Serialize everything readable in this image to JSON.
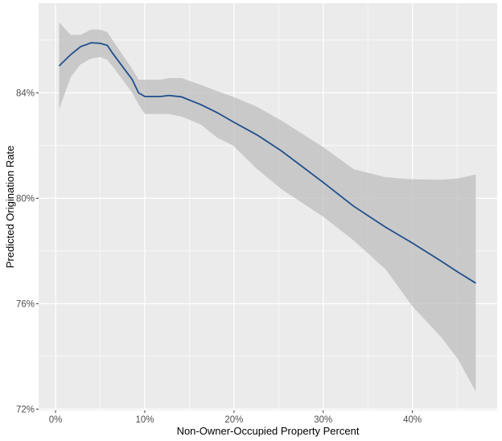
{
  "chart_data": {
    "type": "line",
    "title": "",
    "xlabel": "Non-Owner-Occupied Property Percent",
    "ylabel": "Predicted Origination Rate",
    "xlim": [
      -1.9,
      49.5
    ],
    "ylim": [
      71.95,
      87.4
    ],
    "x_ticks": [
      0,
      10,
      20,
      30,
      40
    ],
    "x_tick_labels": [
      "0%",
      "10%",
      "20%",
      "30%",
      "40%"
    ],
    "y_ticks": [
      72,
      76,
      80,
      84
    ],
    "y_tick_labels": [
      "72%",
      "76%",
      "80%",
      "84%"
    ],
    "grid": true,
    "line_color": "#1f4e8c",
    "ribbon_color": "#bdbdbd",
    "panel_color": "#ebebeb",
    "x": [
      0.4,
      1.7,
      2.8,
      4.0,
      5.0,
      5.8,
      6.4,
      8.6,
      9.3,
      10,
      11.8,
      12.7,
      14.1,
      16.3,
      18.1,
      19.9,
      22.6,
      25.3,
      30,
      33.4,
      37,
      40,
      43.3,
      45.1,
      47.1
    ],
    "series": [
      {
        "values": [
          85.02,
          85.45,
          85.75,
          85.9,
          85.88,
          85.8,
          85.5,
          84.5,
          84.0,
          83.86,
          83.86,
          83.9,
          83.85,
          83.55,
          83.25,
          82.9,
          82.4,
          81.8,
          80.6,
          79.7,
          78.9,
          78.3,
          77.6,
          77.2,
          76.78
        ],
        "upper": [
          86.67,
          86.2,
          86.2,
          86.4,
          86.4,
          86.3,
          86.0,
          84.9,
          84.5,
          84.5,
          84.5,
          84.56,
          84.56,
          84.3,
          84.07,
          83.85,
          83.47,
          82.95,
          81.94,
          81.1,
          80.8,
          80.72,
          80.7,
          80.75,
          80.9
        ],
        "lower": [
          83.37,
          84.6,
          85.08,
          85.3,
          85.36,
          85.25,
          85.0,
          84.0,
          83.56,
          83.2,
          83.2,
          83.2,
          83.1,
          82.8,
          82.3,
          82.0,
          81.1,
          80.35,
          79.3,
          78.4,
          77.3,
          75.9,
          74.7,
          73.9,
          72.66
        ]
      }
    ]
  }
}
